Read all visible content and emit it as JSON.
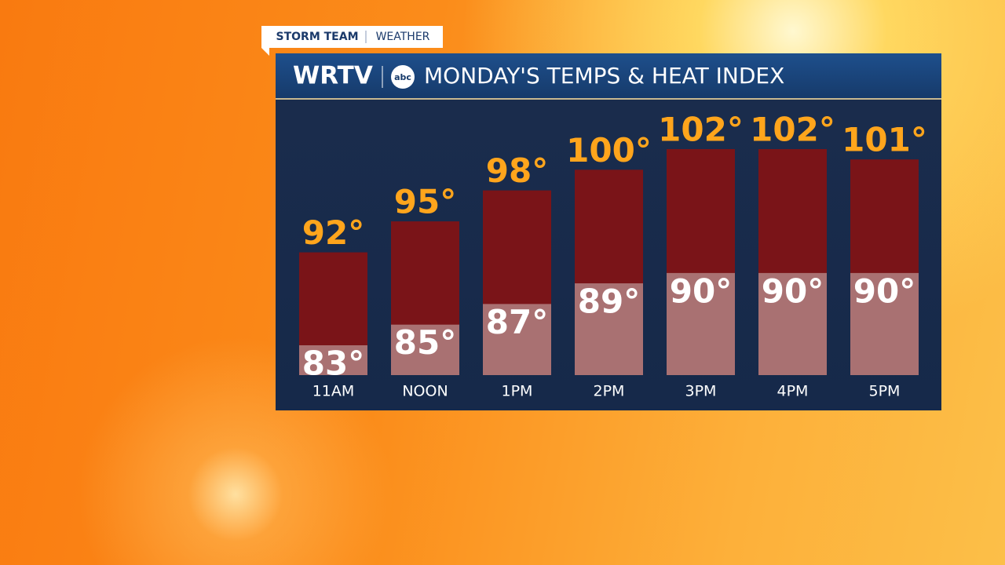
{
  "header": {
    "tag": "STORM TEAM",
    "tag_section": "WEATHER",
    "brand": "WRTV",
    "network": "abc"
  },
  "chart_data": {
    "type": "bar",
    "title": "MONDAY'S TEMPS & HEAT INDEX",
    "categories": [
      "11AM",
      "NOON",
      "1PM",
      "2PM",
      "3PM",
      "4PM",
      "5PM"
    ],
    "series": [
      {
        "color": "#7a1418",
        "values": [
          92,
          95,
          98,
          100,
          102,
          102,
          101
        ],
        "value_labels": [
          "92°",
          "95°",
          "98°",
          "100°",
          "102°",
          "102°",
          "101°"
        ]
      },
      {
        "color": "#a97172",
        "values": [
          83,
          85,
          87,
          89,
          90,
          90,
          90
        ],
        "value_labels": [
          "83°",
          "85°",
          "87°",
          "89°",
          "90°",
          "90°",
          "90°"
        ]
      }
    ]
  }
}
